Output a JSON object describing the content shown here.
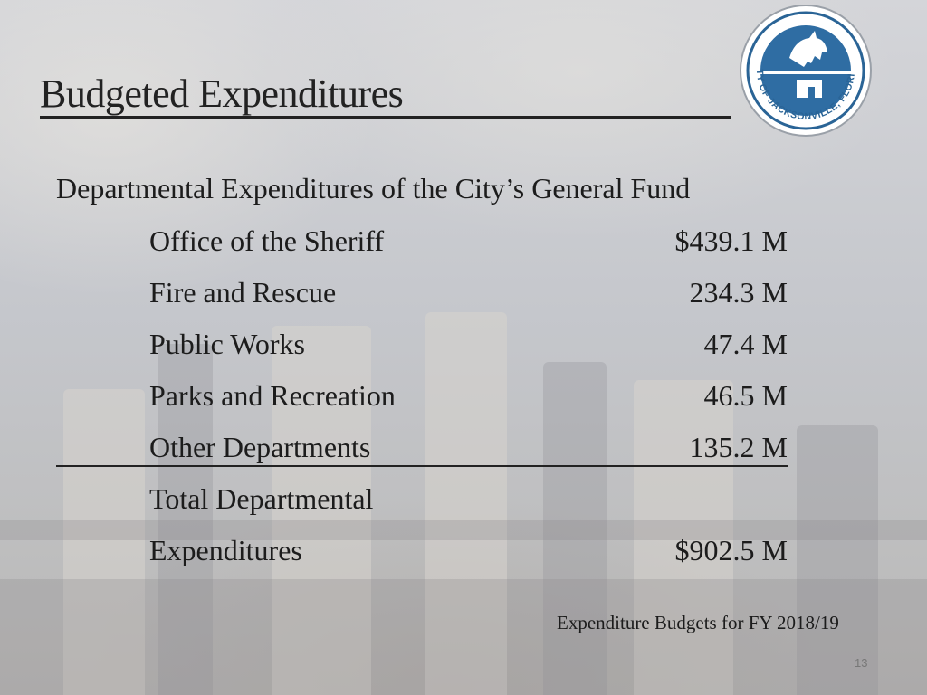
{
  "slide": {
    "title": "Budgeted Expenditures",
    "subtitle": "Departmental Expenditures of the City’s General Fund",
    "logo": {
      "icon": "city-seal-horse-icon",
      "text": "CITY OF JACKSONVILLE, FLORIDA",
      "colors": {
        "primary": "#2a6496",
        "ring": "#ffffff"
      }
    },
    "rows": [
      {
        "label": "Office of the Sheriff",
        "value": "$439.1 M"
      },
      {
        "label": "Fire and Rescue",
        "value": "234.3 M"
      },
      {
        "label": "Public Works",
        "value": "47.4 M"
      },
      {
        "label": "Parks and Recreation",
        "value": "46.5 M"
      },
      {
        "label": "Other Departments",
        "value": "135.2 M"
      }
    ],
    "total": {
      "label_line1": "Total Departmental",
      "label_line2": "Expenditures",
      "value": "$902.5 M"
    },
    "caption": "Expenditure Budgets for FY 2018/19",
    "page_number": "13"
  }
}
